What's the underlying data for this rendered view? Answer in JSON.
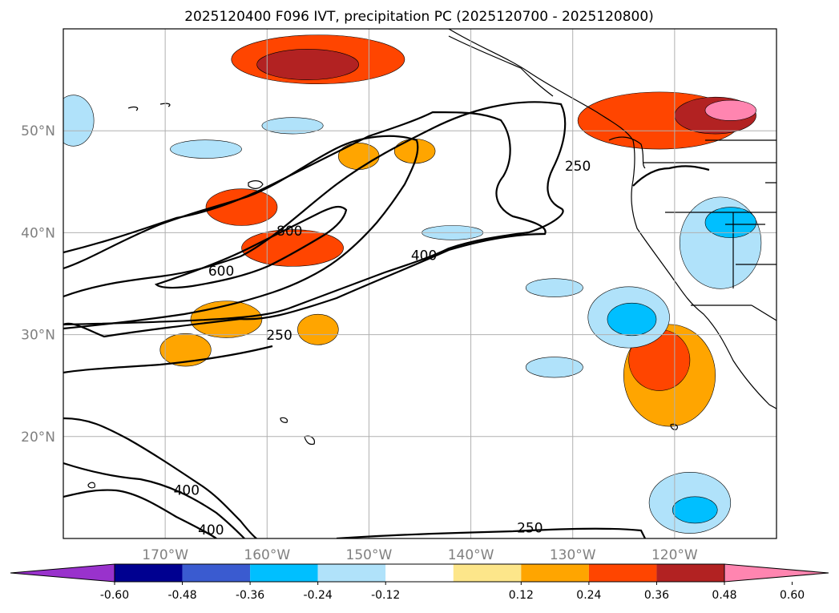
{
  "chart_data": {
    "type": "contour-map",
    "title": "2025120400 F096 IVT, precipitation PC (2025120700 - 2025120800)",
    "map_extent": {
      "lon_range": [
        -180,
        -110
      ],
      "lat_range": [
        10,
        60
      ]
    },
    "lat_ticks": [
      {
        "value": 50,
        "label": "50°N"
      },
      {
        "value": 40,
        "label": "40°N"
      },
      {
        "value": 30,
        "label": "30°N"
      },
      {
        "value": 20,
        "label": "20°N"
      }
    ],
    "lon_ticks": [
      {
        "value": -170,
        "label": "170°W"
      },
      {
        "value": -160,
        "label": "160°W"
      },
      {
        "value": -150,
        "label": "150°W"
      },
      {
        "value": -140,
        "label": "140°W"
      },
      {
        "value": -130,
        "label": "130°W"
      },
      {
        "value": -120,
        "label": "120°W"
      }
    ],
    "gridlines": true,
    "ivt_contour_levels": [
      250,
      400,
      600,
      800
    ],
    "contour_labels": [
      {
        "text": "800",
        "lon": -157.8,
        "lat": 39.7
      },
      {
        "text": "600",
        "lon": -164.5,
        "lat": 35.8
      },
      {
        "text": "400",
        "lon": -144.6,
        "lat": 37.3
      },
      {
        "text": "250",
        "lon": -158.8,
        "lat": 29.5
      },
      {
        "text": "250",
        "lon": -129.5,
        "lat": 46.1
      },
      {
        "text": "400",
        "lon": -167.9,
        "lat": 14.3
      },
      {
        "text": "400",
        "lon": -165.5,
        "lat": 10.4
      },
      {
        "text": "250",
        "lon": -134.2,
        "lat": 10.6
      }
    ],
    "colorbar": {
      "ticks": [
        "-0.60",
        "-0.48",
        "-0.36",
        "-0.24",
        "-0.12",
        "0.12",
        "0.24",
        "0.36",
        "0.48",
        "0.60"
      ],
      "under_color": "#9932cc",
      "over_color": "#ff85b0",
      "colors": [
        "#000090",
        "#3a5bd0",
        "#00bfff",
        "#b0e2fa",
        "#ffffff",
        "#fde68a",
        "#ffa500",
        "#ff4500",
        "#b22222"
      ]
    },
    "precip_anomaly_regions": [
      {
        "lon": -155,
        "lat": 57,
        "rx": 8.5,
        "ry": 2.4,
        "level": 0.36
      },
      {
        "lon": -156,
        "lat": 56.5,
        "rx": 5,
        "ry": 1.5,
        "level": 0.48
      },
      {
        "lon": -162.5,
        "lat": 42.5,
        "rx": 3.5,
        "ry": 1.8,
        "level": 0.36
      },
      {
        "lon": -157.5,
        "lat": 38.5,
        "rx": 5,
        "ry": 1.8,
        "level": 0.36
      },
      {
        "lon": -164,
        "lat": 31.5,
        "rx": 3.5,
        "ry": 1.8,
        "level": 0.24
      },
      {
        "lon": -168,
        "lat": 28.5,
        "rx": 2.5,
        "ry": 1.6,
        "level": 0.24
      },
      {
        "lon": -155,
        "lat": 30.5,
        "rx": 2,
        "ry": 1.5,
        "level": 0.24
      },
      {
        "lon": -151,
        "lat": 47.5,
        "rx": 2,
        "ry": 1.3,
        "level": 0.24
      },
      {
        "lon": -145.5,
        "lat": 48,
        "rx": 2,
        "ry": 1.2,
        "level": 0.24
      },
      {
        "lon": -121.5,
        "lat": 51,
        "rx": 8,
        "ry": 2.8,
        "level": 0.36
      },
      {
        "lon": -116,
        "lat": 51.5,
        "rx": 4,
        "ry": 1.8,
        "level": 0.48
      },
      {
        "lon": -114.5,
        "lat": 52,
        "rx": 2.5,
        "ry": 1,
        "level": 0.6
      },
      {
        "lon": -120.5,
        "lat": 26,
        "rx": 4.5,
        "ry": 5,
        "level": 0.24
      },
      {
        "lon": -121.5,
        "lat": 27.5,
        "rx": 3,
        "ry": 3,
        "level": 0.36
      },
      {
        "lon": -157.5,
        "lat": 50.5,
        "rx": 3,
        "ry": 0.8,
        "level": -0.24
      },
      {
        "lon": -166,
        "lat": 48.2,
        "rx": 3.5,
        "ry": 0.9,
        "level": -0.24
      },
      {
        "lon": -141.8,
        "lat": 40,
        "rx": 3,
        "ry": 0.7,
        "level": -0.24
      },
      {
        "lon": -131.8,
        "lat": 34.6,
        "rx": 2.8,
        "ry": 0.9,
        "level": -0.24
      },
      {
        "lon": -124.5,
        "lat": 31.7,
        "rx": 4,
        "ry": 3,
        "level": -0.24
      },
      {
        "lon": -124.2,
        "lat": 31.5,
        "rx": 2.4,
        "ry": 1.6,
        "level": -0.36
      },
      {
        "lon": -115.5,
        "lat": 39,
        "rx": 4,
        "ry": 4.5,
        "level": -0.24
      },
      {
        "lon": -114.5,
        "lat": 41,
        "rx": 2.5,
        "ry": 1.5,
        "level": -0.36
      },
      {
        "lon": -131.8,
        "lat": 26.8,
        "rx": 2.8,
        "ry": 1,
        "level": -0.24
      },
      {
        "lon": -118.5,
        "lat": 13.5,
        "rx": 4,
        "ry": 3,
        "level": -0.24
      },
      {
        "lon": -118,
        "lat": 12.8,
        "rx": 2.2,
        "ry": 1.3,
        "level": -0.36
      },
      {
        "lon": -179,
        "lat": 51,
        "rx": 2,
        "ry": 2.5,
        "level": -0.24
      }
    ]
  }
}
